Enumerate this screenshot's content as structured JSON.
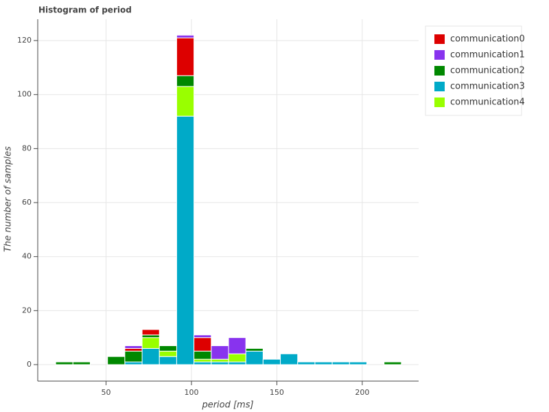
{
  "chart_data": {
    "type": "stacked_histogram",
    "title": "Histogram of period",
    "x_label": "period [ms]",
    "y_label": "The number of samples",
    "bins": [
      20.5,
      30.62,
      40.74,
      50.86,
      60.98,
      71.1,
      81.22,
      91.34,
      101.46,
      111.58,
      121.7,
      131.82,
      141.94,
      152.06,
      162.18,
      172.3,
      182.42,
      192.54,
      202.66,
      212.78,
      222.9
    ],
    "series": [
      {
        "name": "communication0",
        "color": "#dd0000",
        "values": [
          0,
          0,
          0,
          0,
          1,
          2,
          0,
          14,
          5,
          0,
          0,
          0,
          0,
          0,
          0,
          0,
          0,
          0,
          0,
          0
        ]
      },
      {
        "name": "communication1",
        "color": "#8833ee",
        "values": [
          0,
          0,
          0,
          0,
          1,
          0,
          0,
          1,
          1,
          5,
          6,
          0,
          0,
          0,
          0,
          0,
          0,
          0,
          0,
          0
        ]
      },
      {
        "name": "communication2",
        "color": "#008800",
        "values": [
          1,
          1,
          0,
          3,
          4,
          1,
          2,
          4,
          3,
          0,
          0,
          1,
          0,
          0,
          0,
          0,
          0,
          0,
          0,
          1
        ]
      },
      {
        "name": "communication3",
        "color": "#00aac8",
        "values": [
          0,
          0,
          0,
          0,
          1,
          6,
          3,
          92,
          1,
          1,
          1,
          5,
          2,
          4,
          1,
          1,
          1,
          1,
          0,
          0
        ]
      },
      {
        "name": "communication4",
        "color": "#99ff00",
        "values": [
          0,
          0,
          0,
          0,
          0,
          4,
          2,
          11,
          1,
          1,
          3,
          0,
          0,
          0,
          0,
          0,
          0,
          0,
          0,
          0
        ]
      }
    ],
    "xlim": [
      10,
      233
    ],
    "ylim": [
      -6.1,
      127.9
    ],
    "xticks": [
      50,
      100,
      150,
      200
    ],
    "yticks": [
      0,
      20,
      40,
      60,
      80,
      100,
      120
    ],
    "grid": true
  }
}
